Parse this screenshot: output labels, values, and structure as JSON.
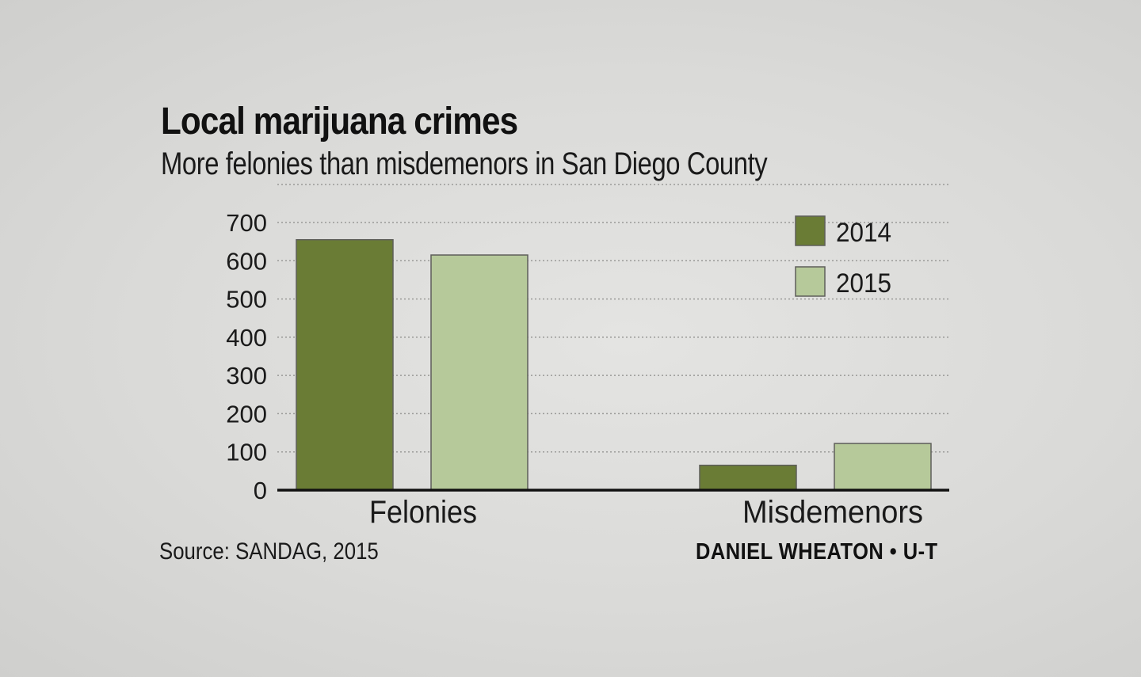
{
  "chart_data": {
    "type": "bar",
    "title": "Local marijuana crimes",
    "subtitle": "More felonies than misdemenors in San Diego County",
    "categories": [
      "Felonies",
      "Misdemenors"
    ],
    "series": [
      {
        "name": "2014",
        "color": "#6a7c35",
        "values": [
          655,
          65
        ]
      },
      {
        "name": "2015",
        "color": "#b6c99a",
        "values": [
          615,
          122
        ]
      }
    ],
    "ylim": [
      0,
      700
    ],
    "yticks": [
      0,
      100,
      200,
      300,
      400,
      500,
      600,
      700
    ],
    "grid": true,
    "legend_position": "top-right",
    "source": "Source: SANDAG, 2015",
    "credit": "DANIEL WHEATON • U-T"
  }
}
